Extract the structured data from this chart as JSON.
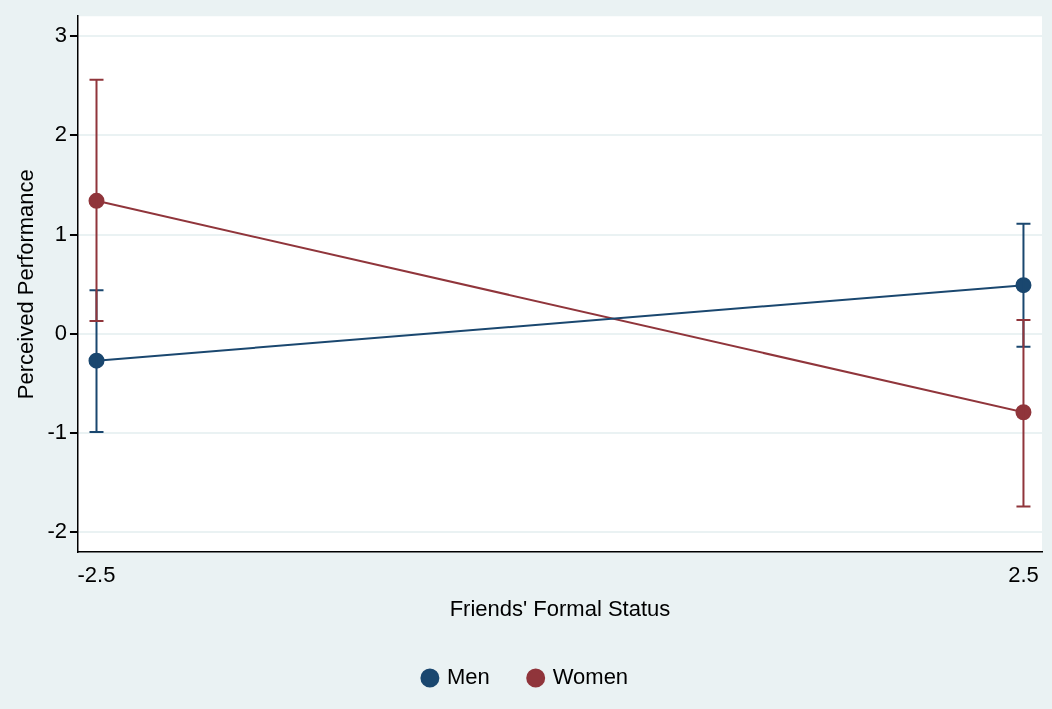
{
  "chart_data": {
    "type": "line",
    "xlabel": "Friends' Formal Status",
    "ylabel": "Perceived Performance",
    "x": [
      -2.5,
      2.5
    ],
    "series": [
      {
        "name": "Men",
        "color": "#1a476f",
        "values": [
          -0.27,
          0.49
        ],
        "errors": [
          [
            -0.99,
            0.44
          ],
          [
            -0.13,
            1.11
          ]
        ]
      },
      {
        "name": "Women",
        "color": "#90353b",
        "values": [
          1.34,
          -0.79
        ],
        "errors": [
          [
            0.13,
            2.56
          ],
          [
            -1.74,
            0.14
          ]
        ]
      }
    ],
    "xlim": [
      -2.6,
      2.6
    ],
    "xticks": [
      -2.5,
      2.5
    ],
    "ylim": [
      -2.2,
      3.2
    ],
    "yticks": [
      -2,
      -1,
      0,
      1,
      2,
      3
    ],
    "grid": "y",
    "legend": "bottom",
    "marker": "circle",
    "line_style": "solid"
  }
}
